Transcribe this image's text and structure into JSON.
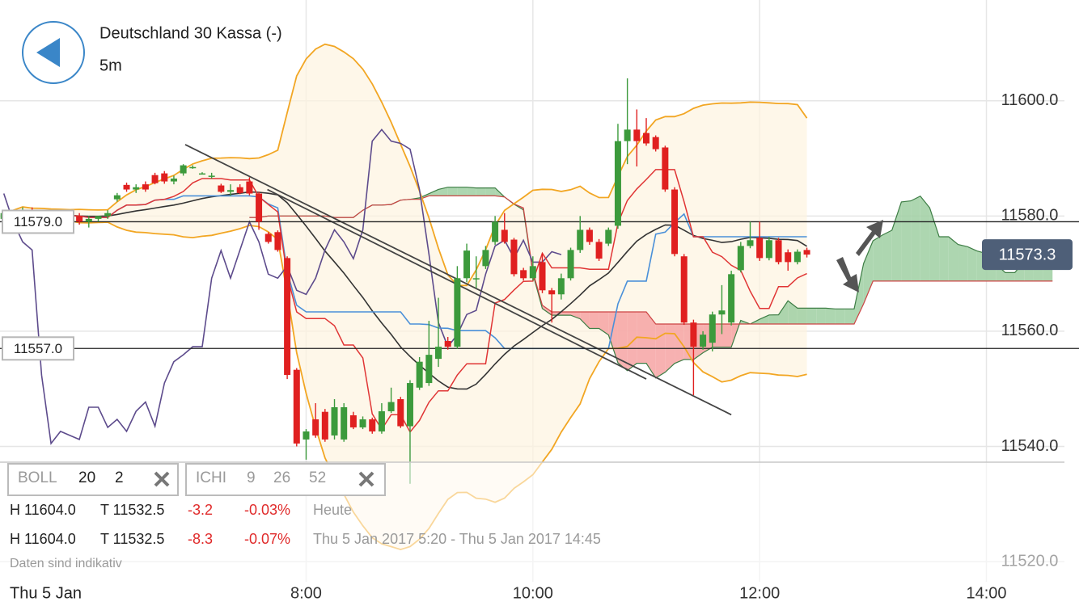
{
  "header": {
    "title": "Deutschland 30 Kassa (-)",
    "interval": "5m"
  },
  "indicators": [
    {
      "name": "BOLL",
      "params": [
        20,
        2
      ]
    },
    {
      "name": "ICHI",
      "params": [
        9,
        26,
        52
      ]
    }
  ],
  "stats": [
    {
      "high": "H 11604.0",
      "low": "T 11532.5",
      "change": "-3.2",
      "percent": "-0.03%",
      "period": "Heute"
    },
    {
      "high": "H 11604.0",
      "low": "T 11532.5",
      "change": "-8.3",
      "percent": "-0.07%",
      "period": "Thu 5 Jan 2017 5:20 - Thu 5 Jan 2017 14:45"
    }
  ],
  "disclaimer": "Daten sind indikativ",
  "date_label": "Thu 5 Jan",
  "chart_data": {
    "type": "candlestick",
    "x": [
      320,
      325,
      330,
      335,
      340,
      345,
      350,
      355,
      360,
      365,
      370,
      375,
      380,
      385,
      390,
      395,
      400,
      405,
      410,
      415,
      420,
      425,
      430,
      435,
      440,
      445,
      450,
      455,
      460,
      465,
      470,
      475,
      480,
      485,
      490,
      495,
      500,
      505,
      510,
      515,
      520,
      525,
      530,
      535,
      540,
      545,
      550,
      555,
      560,
      565,
      570,
      575,
      580,
      585,
      590,
      595,
      600,
      605,
      610,
      615,
      620,
      625,
      630,
      635,
      640,
      645,
      650,
      655,
      660,
      665,
      670,
      675,
      680,
      685,
      690,
      695,
      700,
      705,
      710,
      715,
      720,
      725,
      730,
      735,
      740,
      745
    ],
    "open": [
      11579.5,
      11580.5,
      11579.5,
      11581,
      11580,
      11580.5,
      11580,
      11579.5,
      11580,
      11579,
      11579.5,
      11580,
      11582.9,
      11585.4,
      11584.6,
      11585.5,
      11587.1,
      11587.4,
      11586,
      11587.4,
      11588.5,
      11587.4,
      11587,
      11585.3,
      11584.2,
      11585,
      11586,
      11583.9,
      11576.9,
      11577.2,
      11572.7,
      11553.3,
      11541.2,
      11544.7,
      11546,
      11541.9,
      11541.2,
      11545.4,
      11543.3,
      11544.7,
      11542.6,
      11546.1,
      11548.2,
      11543.5,
      11550.2,
      11551,
      11555.2,
      11558.3,
      11557.3,
      11569.2,
      11569,
      11571.3,
      11575.5,
      11577.6,
      11575.9,
      11570.6,
      11569.2,
      11572,
      11567.1,
      11566.4,
      11569.2,
      11574.1,
      11577.6,
      11575.5,
      11575.2,
      11578.3,
      11593,
      11595,
      11594.4,
      11593.7,
      11591.9,
      11584.6,
      11573,
      11561.5,
      11557.3,
      11558,
      11562.9,
      11561.5,
      11570.6,
      11574.8,
      11576.2,
      11572.7,
      11575.8,
      11573.7,
      11572,
      11574.1
    ],
    "high": [
      11581,
      11581,
      11581.5,
      11581.5,
      11581,
      11581,
      11580.5,
      11580.5,
      11580.5,
      11580,
      11580,
      11581,
      11584,
      11585.8,
      11585.5,
      11586,
      11587.5,
      11587.8,
      11587,
      11589,
      11588.8,
      11587.6,
      11587.5,
      11585.6,
      11585.5,
      11585.5,
      11586.7,
      11584.2,
      11577.2,
      11577.5,
      11573,
      11553.6,
      11543,
      11547.5,
      11546.5,
      11548.2,
      11547.5,
      11546,
      11545.2,
      11545,
      11547.5,
      11550.2,
      11548.6,
      11551.5,
      11555.5,
      11561.8,
      11565.8,
      11559,
      11571.3,
      11575.2,
      11573,
      11574.8,
      11580,
      11580.5,
      11576.2,
      11571,
      11573,
      11573.5,
      11567.5,
      11570,
      11574.5,
      11580,
      11578,
      11576,
      11578,
      11596,
      11603.9,
      11598.5,
      11597,
      11594,
      11592.2,
      11585,
      11573.4,
      11562,
      11560,
      11563.4,
      11568,
      11570.5,
      11575.5,
      11579,
      11579,
      11576.4,
      11576.2,
      11574.2,
      11574.2,
      11574.5
    ],
    "low": [
      11578.5,
      11579,
      11579,
      11579.5,
      11579,
      11579.5,
      11579,
      11579,
      11578.5,
      11578,
      11579,
      11579.5,
      11582.5,
      11584.2,
      11584,
      11584.2,
      11585.5,
      11585.6,
      11585.5,
      11587,
      11588.2,
      11587.2,
      11586.5,
      11584,
      11583.5,
      11583.8,
      11583.6,
      11577.6,
      11575.2,
      11573.8,
      11551.7,
      11540,
      11537.7,
      11541.5,
      11540.8,
      11541.2,
      11540.8,
      11543,
      11543,
      11542.2,
      11542.2,
      11545.8,
      11543.2,
      11533.5,
      11549.8,
      11550.5,
      11553.8,
      11556.8,
      11556.9,
      11568.5,
      11567.5,
      11570.8,
      11575,
      11575.2,
      11569.5,
      11568.8,
      11568.8,
      11566.6,
      11561.5,
      11565.5,
      11568.8,
      11573.6,
      11575,
      11572.2,
      11574.8,
      11577.8,
      11589,
      11588.6,
      11592.2,
      11591.2,
      11584.2,
      11573,
      11561.1,
      11548.9,
      11556.8,
      11556.5,
      11559.5,
      11561,
      11570.2,
      11574.4,
      11572.2,
      11572.3,
      11571.6,
      11570.5,
      11571.6,
      11572.8
    ],
    "close": [
      11580.5,
      11579.5,
      11581,
      11580,
      11580.5,
      11580,
      11579.5,
      11580,
      11579,
      11579.5,
      11580,
      11580.5,
      11583.6,
      11584.6,
      11585,
      11584.6,
      11585.7,
      11586,
      11586.5,
      11588.8,
      11588.5,
      11587.4,
      11587,
      11584.2,
      11584.5,
      11584,
      11583.9,
      11579,
      11575.5,
      11574.1,
      11552.4,
      11540.5,
      11542.6,
      11541.9,
      11541.2,
      11546.8,
      11546.8,
      11543.3,
      11544.7,
      11542.6,
      11546.1,
      11547.7,
      11543.5,
      11551,
      11554.7,
      11555.9,
      11557.3,
      11557.3,
      11569.2,
      11574,
      11569.2,
      11574.1,
      11579,
      11575.5,
      11569.9,
      11569.2,
      11571.3,
      11567.1,
      11566.4,
      11569.2,
      11574.1,
      11577.6,
      11575.5,
      11572.6,
      11577.6,
      11593,
      11595,
      11593,
      11592.6,
      11591.6,
      11584.6,
      11573.4,
      11561.5,
      11557.3,
      11559.4,
      11562.9,
      11563.6,
      11569.9,
      11574.8,
      11575.8,
      11572.7,
      11575.8,
      11572,
      11572,
      11573.8,
      11573.3
    ],
    "xlim": [
      318,
      889
    ],
    "xticks": [
      {
        "value": 480,
        "label": "8:00"
      },
      {
        "value": 600,
        "label": "10:00"
      },
      {
        "value": 720,
        "label": "12:00"
      },
      {
        "value": 840,
        "label": "14:00"
      }
    ],
    "ylim": [
      11516.5,
      11617.5
    ],
    "yticks": [
      {
        "value": 11520,
        "label": "11520.0"
      },
      {
        "value": 11540,
        "label": "11540.0"
      },
      {
        "value": 11560,
        "label": "11560.0"
      },
      {
        "value": 11580,
        "label": "11580.0"
      },
      {
        "value": 11600,
        "label": "11600.0"
      }
    ],
    "hlines": [
      {
        "value": 11579,
        "label": "11579.0"
      },
      {
        "value": 11557,
        "label": "11557.0"
      }
    ],
    "last_price": 11573.3,
    "trendlines": [
      {
        "x": [
          416,
          705
        ],
        "y": [
          11592.4,
          11545.5
        ]
      },
      {
        "x": [
          459.5,
          660
        ],
        "y": [
          11584.6,
          11551.7
        ]
      }
    ],
    "up_color": "#3c9a3c",
    "down_color": "#e02020",
    "grid": true
  }
}
